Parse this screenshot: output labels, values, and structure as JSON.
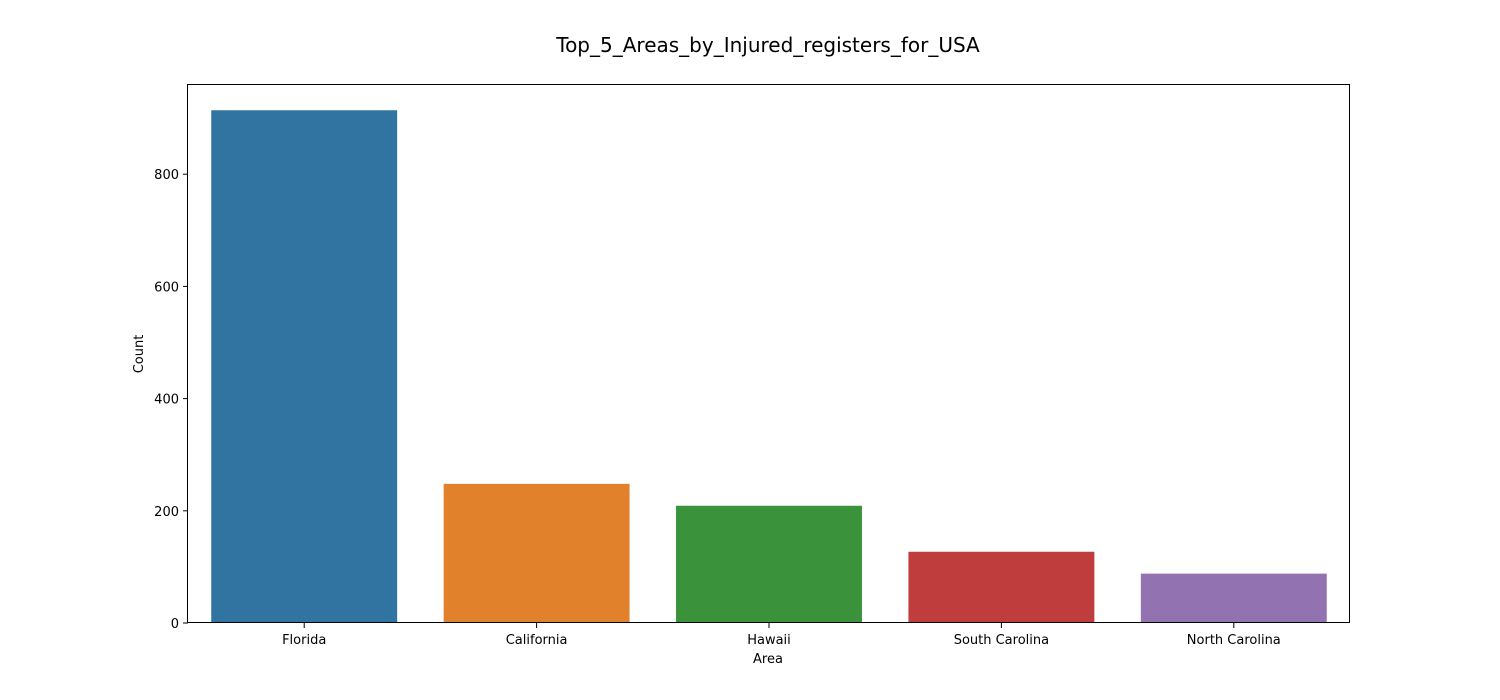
{
  "chart_data": {
    "type": "bar",
    "title": "Top_5_Areas_by_Injured_registers_for_USA",
    "xlabel": "Area",
    "ylabel": "Count",
    "categories": [
      "Florida",
      "California",
      "Hawaii",
      "South Carolina",
      "North Carolina"
    ],
    "values": [
      914,
      248,
      209,
      127,
      88
    ],
    "colors": [
      "#3274a1",
      "#e1812c",
      "#3a923a",
      "#c03d3e",
      "#9372b2"
    ],
    "ylim": [
      0,
      959
    ],
    "yticks": [
      0,
      200,
      400,
      600,
      800
    ],
    "grid": false,
    "legend": "none"
  }
}
